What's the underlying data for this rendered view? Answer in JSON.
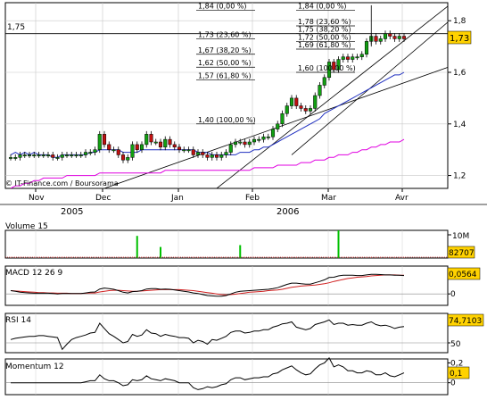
{
  "chart_data": [
    {
      "type": "candlestick",
      "copyright": "© IT-Finance.com / Boursorama",
      "months": [
        "Nov",
        "Dec",
        "Jan",
        "Feb",
        "Mar",
        "Avr"
      ],
      "years": [
        "2005",
        "2006"
      ],
      "y_ticks": [
        "1,2",
        "1,4",
        "1,6",
        "1,8"
      ],
      "ylim": [
        1.15,
        1.87
      ],
      "last_price": "1,73",
      "level_label": "1,75",
      "fib_low": [
        {
          "text": "1,84 (0,00 %)",
          "price": 1.84
        },
        {
          "text": "1,73 (23,60 %)",
          "price": 1.73
        },
        {
          "text": "1,67 (38,20 %)",
          "price": 1.67
        },
        {
          "text": "1,62 (50,00 %)",
          "price": 1.62
        },
        {
          "text": "1,57 (61,80 %)",
          "price": 1.57
        },
        {
          "text": "1,40 (100,00 %)",
          "price": 1.4
        }
      ],
      "fib_high": [
        {
          "text": "1,84 (0,00 %)",
          "price": 1.84
        },
        {
          "text": "1,78 (23,60 %)",
          "price": 1.78
        },
        {
          "text": "1,75 (38,20 %)",
          "price": 1.75
        },
        {
          "text": "1,72 (50,00 %)",
          "price": 1.72
        },
        {
          "text": "1,69 (61,80 %)",
          "price": 1.69
        },
        {
          "text": "1,60 (100,00 %)",
          "price": 1.6
        }
      ],
      "close_series": [
        1.27,
        1.27,
        1.28,
        1.28,
        1.28,
        1.28,
        1.28,
        1.28,
        1.28,
        1.27,
        1.27,
        1.28,
        1.28,
        1.28,
        1.28,
        1.28,
        1.29,
        1.29,
        1.3,
        1.36,
        1.32,
        1.3,
        1.3,
        1.28,
        1.26,
        1.27,
        1.32,
        1.3,
        1.32,
        1.36,
        1.33,
        1.33,
        1.31,
        1.34,
        1.32,
        1.31,
        1.3,
        1.3,
        1.3,
        1.28,
        1.29,
        1.28,
        1.27,
        1.28,
        1.27,
        1.28,
        1.29,
        1.32,
        1.33,
        1.33,
        1.32,
        1.33,
        1.34,
        1.34,
        1.35,
        1.35,
        1.38,
        1.4,
        1.44,
        1.47,
        1.5,
        1.47,
        1.46,
        1.45,
        1.46,
        1.51,
        1.55,
        1.58,
        1.64,
        1.61,
        1.65,
        1.66,
        1.65,
        1.66,
        1.66,
        1.67,
        1.72,
        1.74,
        1.72,
        1.73,
        1.75,
        1.74,
        1.73,
        1.74,
        1.73
      ],
      "ma_slow": [
        1.28,
        1.29,
        1.28,
        1.29,
        1.28,
        1.29,
        1.28,
        1.28,
        1.28,
        1.27,
        1.27,
        1.28,
        1.28,
        1.28,
        1.28,
        1.28,
        1.28,
        1.29,
        1.29,
        1.3,
        1.3,
        1.3,
        1.3,
        1.3,
        1.29,
        1.29,
        1.29,
        1.29,
        1.3,
        1.3,
        1.3,
        1.3,
        1.3,
        1.3,
        1.3,
        1.3,
        1.3,
        1.3,
        1.3,
        1.3,
        1.29,
        1.29,
        1.29,
        1.28,
        1.28,
        1.28,
        1.28,
        1.28,
        1.28,
        1.29,
        1.29,
        1.29,
        1.3,
        1.3,
        1.31,
        1.31,
        1.32,
        1.33,
        1.34,
        1.35,
        1.36,
        1.37,
        1.38,
        1.39,
        1.4,
        1.41,
        1.42,
        1.44,
        1.45,
        1.46,
        1.47,
        1.48,
        1.49,
        1.5,
        1.51,
        1.52,
        1.53,
        1.54,
        1.55,
        1.56,
        1.57,
        1.58,
        1.59,
        1.59,
        1.6
      ],
      "ma_long": [
        1.15,
        1.16,
        1.16,
        1.17,
        1.17,
        1.18,
        1.18,
        1.19,
        1.19,
        1.19,
        1.19,
        1.19,
        1.2,
        1.2,
        1.2,
        1.2,
        1.2,
        1.2,
        1.2,
        1.21,
        1.21,
        1.21,
        1.21,
        1.21,
        1.21,
        1.21,
        1.21,
        1.21,
        1.21,
        1.21,
        1.21,
        1.21,
        1.21,
        1.22,
        1.22,
        1.22,
        1.22,
        1.22,
        1.22,
        1.22,
        1.22,
        1.22,
        1.22,
        1.22,
        1.22,
        1.22,
        1.22,
        1.22,
        1.22,
        1.22,
        1.22,
        1.22,
        1.23,
        1.23,
        1.23,
        1.23,
        1.23,
        1.24,
        1.24,
        1.24,
        1.24,
        1.24,
        1.25,
        1.25,
        1.25,
        1.26,
        1.26,
        1.26,
        1.27,
        1.27,
        1.28,
        1.28,
        1.28,
        1.29,
        1.29,
        1.3,
        1.3,
        1.31,
        1.31,
        1.32,
        1.32,
        1.33,
        1.33,
        1.33,
        1.34
      ]
    },
    {
      "type": "bar",
      "title": "Volume 15",
      "axis_label": "10M",
      "last_value": "82707",
      "ylim": [
        0,
        15
      ],
      "values": [
        0.2,
        0.2,
        0.2,
        0.2,
        0.2,
        0.2,
        0.2,
        0.2,
        0.2,
        0.2,
        0.2,
        0.2,
        0.2,
        0.2,
        0.2,
        0.2,
        0.2,
        0.2,
        0.2,
        0.2,
        0.2,
        0.2,
        0.2,
        0.2,
        0.2,
        0.2,
        0.2,
        12,
        0.2,
        0.2,
        0.2,
        0.2,
        6,
        0.2,
        0.2,
        0.2,
        0.2,
        0.2,
        0.2,
        0.2,
        0.2,
        0.2,
        0.2,
        0.2,
        0.2,
        0.2,
        0.2,
        0.2,
        0.2,
        7,
        0.2,
        0.2,
        0.2,
        0.2,
        0.2,
        0.2,
        0.2,
        0.2,
        0.2,
        0.2,
        0.2,
        0.2,
        0.2,
        0.2,
        0.2,
        0.2,
        0.2,
        0.2,
        0.2,
        0.2,
        15,
        0.2,
        0.2,
        0.2,
        0.2,
        0.2,
        0.2,
        0.2,
        0.2,
        0.2,
        0.2,
        0.2,
        0.2,
        0.2,
        0.2
      ]
    },
    {
      "type": "line",
      "title": "MACD 12 26 9",
      "last_value": "0,0564",
      "y_ticks": [
        "0"
      ],
      "ylim": [
        -0.035,
        0.085
      ],
      "series": [
        {
          "values": [
            0.01,
            0.008,
            0.005,
            0.004,
            0.003,
            0.002,
            0.002,
            0.002,
            0.002,
            0.001,
            0.0,
            0.001,
            0.001,
            0.001,
            0.001,
            0.001,
            0.003,
            0.005,
            0.006,
            0.015,
            0.018,
            0.016,
            0.014,
            0.01,
            0.005,
            0.003,
            0.007,
            0.008,
            0.01,
            0.015,
            0.016,
            0.016,
            0.014,
            0.015,
            0.014,
            0.012,
            0.01,
            0.008,
            0.006,
            0.003,
            0.001,
            -0.002,
            -0.005,
            -0.006,
            -0.007,
            -0.007,
            -0.005,
            0.0,
            0.005,
            0.008,
            0.009,
            0.01,
            0.011,
            0.012,
            0.013,
            0.014,
            0.016,
            0.019,
            0.024,
            0.029,
            0.033,
            0.033,
            0.031,
            0.03,
            0.03,
            0.034,
            0.038,
            0.043,
            0.05,
            0.051,
            0.055,
            0.057,
            0.057,
            0.057,
            0.056,
            0.056,
            0.058,
            0.06,
            0.06,
            0.059,
            0.058,
            0.058,
            0.057,
            0.057,
            0.056
          ]
        },
        {
          "values": [
            0.01,
            0.009,
            0.008,
            0.007,
            0.006,
            0.005,
            0.004,
            0.004,
            0.003,
            0.003,
            0.002,
            0.002,
            0.002,
            0.001,
            0.001,
            0.001,
            0.002,
            0.003,
            0.003,
            0.006,
            0.008,
            0.01,
            0.011,
            0.011,
            0.01,
            0.009,
            0.008,
            0.008,
            0.009,
            0.01,
            0.011,
            0.012,
            0.013,
            0.013,
            0.013,
            0.013,
            0.013,
            0.012,
            0.011,
            0.01,
            0.008,
            0.006,
            0.004,
            0.002,
            0.0,
            -0.002,
            -0.003,
            -0.002,
            -0.001,
            0.001,
            0.003,
            0.005,
            0.006,
            0.007,
            0.008,
            0.01,
            0.011,
            0.012,
            0.014,
            0.017,
            0.02,
            0.022,
            0.024,
            0.025,
            0.026,
            0.027,
            0.029,
            0.031,
            0.034,
            0.038,
            0.041,
            0.044,
            0.047,
            0.049,
            0.051,
            0.052,
            0.053,
            0.055,
            0.056,
            0.057,
            0.058,
            0.058,
            0.058,
            0.057,
            0.057
          ]
        }
      ]
    },
    {
      "type": "line",
      "title": "RSI 14",
      "last_value": "74,7103",
      "y_ticks": [
        "50"
      ],
      "ylim": [
        35,
        95
      ],
      "values": [
        55,
        57,
        58,
        59,
        60,
        60,
        61,
        61,
        60,
        59,
        58,
        40,
        48,
        55,
        58,
        60,
        62,
        65,
        66,
        80,
        72,
        64,
        60,
        55,
        50,
        52,
        63,
        60,
        62,
        70,
        65,
        64,
        60,
        63,
        61,
        60,
        58,
        58,
        57,
        50,
        54,
        52,
        48,
        55,
        54,
        57,
        60,
        66,
        68,
        68,
        65,
        66,
        68,
        68,
        70,
        70,
        74,
        76,
        79,
        80,
        82,
        74,
        72,
        70,
        72,
        78,
        80,
        82,
        85,
        78,
        80,
        80,
        77,
        78,
        77,
        77,
        80,
        82,
        78,
        76,
        77,
        75,
        72,
        74,
        75
      ]
    },
    {
      "type": "line",
      "title": "Momentum 12",
      "last_value": "0,1",
      "y_ticks": [
        "0,2",
        "0"
      ],
      "ylim": [
        -0.12,
        0.24
      ],
      "values": [
        0.0,
        0.0,
        0.0,
        0.0,
        0.0,
        0.0,
        0.0,
        0.0,
        0.0,
        0.0,
        0.0,
        0.0,
        0.0,
        0.0,
        0.0,
        0.0,
        0.01,
        0.02,
        0.02,
        0.08,
        0.04,
        0.02,
        0.02,
        0.0,
        -0.03,
        -0.02,
        0.03,
        0.02,
        0.03,
        0.07,
        0.04,
        0.03,
        0.02,
        0.04,
        0.03,
        0.02,
        0.0,
        0.0,
        0.0,
        -0.05,
        -0.07,
        -0.06,
        -0.04,
        -0.05,
        -0.04,
        -0.02,
        -0.01,
        0.03,
        0.05,
        0.05,
        0.03,
        0.04,
        0.05,
        0.05,
        0.06,
        0.06,
        0.09,
        0.1,
        0.13,
        0.15,
        0.17,
        0.13,
        0.1,
        0.08,
        0.09,
        0.14,
        0.18,
        0.2,
        0.25,
        0.16,
        0.18,
        0.16,
        0.12,
        0.12,
        0.1,
        0.1,
        0.12,
        0.11,
        0.08,
        0.08,
        0.1,
        0.07,
        0.06,
        0.08,
        0.1
      ]
    }
  ]
}
